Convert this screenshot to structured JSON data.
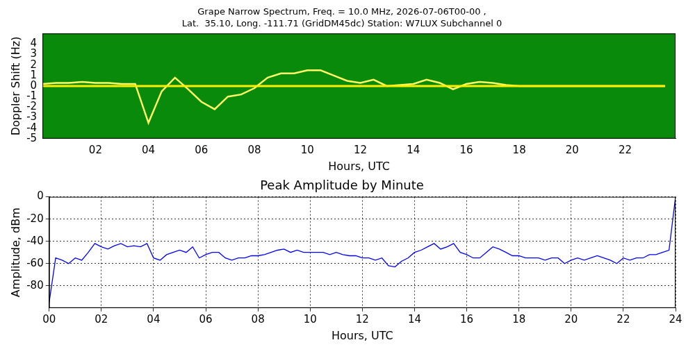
{
  "chart_data": [
    {
      "type": "line",
      "title": "Grape Narrow Spectrum, Freq. = 10.0 MHz, 2026-07-06T00-00 ,",
      "subtitle": "Lat.  35.10, Long. -111.71 (GridDM45dc) Station: W7LUX Subchannel 0",
      "x_label": "Hours, UTC",
      "y_label": "Doppler Shift (Hz)",
      "xlim": [
        0,
        23.9
      ],
      "xticks": [
        {
          "value": 2,
          "label": "02"
        },
        {
          "value": 4,
          "label": "04"
        },
        {
          "value": 6,
          "label": "06"
        },
        {
          "value": 8,
          "label": "08"
        },
        {
          "value": 10,
          "label": "10"
        },
        {
          "value": 12,
          "label": "12"
        },
        {
          "value": 14,
          "label": "14"
        },
        {
          "value": 16,
          "label": "16"
        },
        {
          "value": 18,
          "label": "18"
        },
        {
          "value": 20,
          "label": "20"
        },
        {
          "value": 22,
          "label": "22"
        }
      ],
      "ylim": [
        -5,
        5
      ],
      "yticks": [
        -5,
        -4,
        -3,
        -2,
        -1,
        0,
        1,
        2,
        3,
        4
      ],
      "grid": false,
      "x": [
        0,
        0.5,
        1,
        1.5,
        2,
        2.5,
        3,
        3.5,
        4,
        4.5,
        5,
        5.5,
        6,
        6.5,
        7,
        7.5,
        8,
        8.5,
        9,
        9.5,
        10,
        10.5,
        11,
        11.5,
        12,
        12.5,
        13,
        13.5,
        14,
        14.5,
        15,
        15.5,
        16,
        16.5,
        17,
        17.5,
        18,
        18.5,
        19,
        19.5,
        20,
        20.5,
        21,
        21.5,
        22,
        22.5,
        23,
        23.5
      ],
      "series": [
        {
          "color": "#ffee00",
          "values": [
            0,
            0,
            0,
            0,
            0,
            0,
            0,
            0,
            0,
            0,
            0,
            0,
            0,
            0,
            0,
            0,
            0,
            0,
            0,
            0,
            0,
            0,
            0,
            0,
            0,
            0,
            0,
            0,
            0,
            0,
            0,
            0,
            0,
            0,
            0,
            0,
            0,
            0,
            0,
            0,
            0,
            0,
            0,
            0,
            0,
            0,
            0,
            0
          ]
        },
        {
          "color": "#ffff66",
          "values": [
            0.2,
            0.3,
            0.3,
            0.4,
            0.3,
            0.3,
            0.2,
            0.2,
            -3.5,
            -0.5,
            0.8,
            -0.3,
            -1.5,
            -2.2,
            -1.0,
            -0.8,
            -0.2,
            0.8,
            1.2,
            1.2,
            1.5,
            1.5,
            1.0,
            0.5,
            0.3,
            0.6,
            0.0,
            0.1,
            0.2,
            0.6,
            0.3,
            -0.3,
            0.2,
            0.4,
            0.3,
            0.1,
            0.0,
            0.0,
            0.0,
            0.0,
            0.0,
            0.0,
            0.0,
            0.0,
            0.0,
            0.0,
            0.0,
            0.0
          ]
        }
      ]
    },
    {
      "type": "line",
      "title": "Peak Amplitude by Minute",
      "x_label": "Hours, UTC",
      "y_label": "Amplitude, dBm",
      "xlim": [
        0,
        24
      ],
      "xticks": [
        {
          "value": 0,
          "label": "00"
        },
        {
          "value": 2,
          "label": "02"
        },
        {
          "value": 4,
          "label": "04"
        },
        {
          "value": 6,
          "label": "06"
        },
        {
          "value": 8,
          "label": "08"
        },
        {
          "value": 10,
          "label": "10"
        },
        {
          "value": 12,
          "label": "12"
        },
        {
          "value": 14,
          "label": "14"
        },
        {
          "value": 16,
          "label": "16"
        },
        {
          "value": 18,
          "label": "18"
        },
        {
          "value": 20,
          "label": "20"
        },
        {
          "value": 22,
          "label": "22"
        },
        {
          "value": 24,
          "label": "24"
        }
      ],
      "ylim": [
        -100,
        0
      ],
      "yticks": [
        -80,
        -60,
        -40,
        -20,
        0
      ],
      "grid": true,
      "x": [
        0,
        0.25,
        0.5,
        0.75,
        1,
        1.25,
        1.5,
        1.75,
        2,
        2.25,
        2.5,
        2.75,
        3,
        3.25,
        3.5,
        3.75,
        4,
        4.25,
        4.5,
        4.75,
        5,
        5.25,
        5.5,
        5.75,
        6,
        6.25,
        6.5,
        6.75,
        7,
        7.25,
        7.5,
        7.75,
        8,
        8.25,
        8.5,
        8.75,
        9,
        9.25,
        9.5,
        9.75,
        10,
        10.25,
        10.5,
        10.75,
        11,
        11.25,
        11.5,
        11.75,
        12,
        12.25,
        12.5,
        12.75,
        13,
        13.25,
        13.5,
        13.75,
        14,
        14.25,
        14.5,
        14.75,
        15,
        15.25,
        15.5,
        15.75,
        16,
        16.25,
        16.5,
        16.75,
        17,
        17.25,
        17.5,
        17.75,
        18,
        18.25,
        18.5,
        18.75,
        19,
        19.25,
        19.5,
        19.75,
        20,
        20.25,
        20.5,
        20.75,
        21,
        21.25,
        21.5,
        21.75,
        22,
        22.25,
        22.5,
        22.75,
        23,
        23.25,
        23.5,
        23.75,
        24
      ],
      "series": [
        {
          "color": "#0000ff",
          "values": [
            -95,
            -55,
            -57,
            -60,
            -55,
            -57,
            -50,
            -42,
            -45,
            -47,
            -44,
            -42,
            -45,
            -44,
            -45,
            -42,
            -55,
            -57,
            -52,
            -50,
            -48,
            -50,
            -45,
            -55,
            -52,
            -50,
            -50,
            -55,
            -57,
            -55,
            -55,
            -53,
            -53,
            -52,
            -50,
            -48,
            -47,
            -50,
            -48,
            -50,
            -50,
            -50,
            -50,
            -52,
            -50,
            -52,
            -53,
            -53,
            -55,
            -55,
            -57,
            -55,
            -62,
            -63,
            -58,
            -55,
            -50,
            -48,
            -45,
            -42,
            -47,
            -45,
            -42,
            -50,
            -52,
            -55,
            -55,
            -50,
            -45,
            -47,
            -50,
            -53,
            -53,
            -55,
            -55,
            -55,
            -57,
            -55,
            -55,
            -60,
            -57,
            -55,
            -57,
            -55,
            -53,
            -55,
            -57,
            -60,
            -55,
            -57,
            -55,
            -55,
            -52,
            -52,
            -50,
            -48,
            0
          ]
        }
      ]
    }
  ]
}
